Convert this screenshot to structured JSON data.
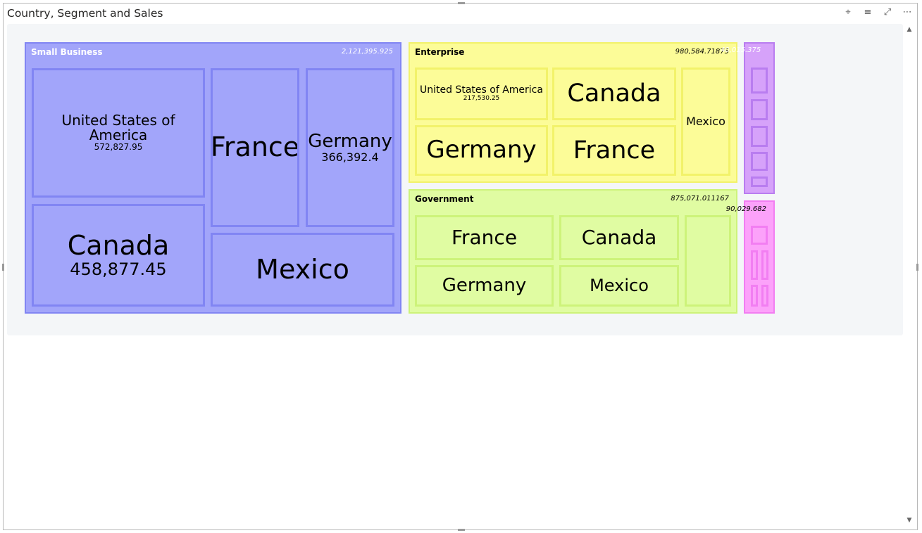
{
  "visual": {
    "title": "Country, Segment and Sales"
  },
  "header_icons": [
    {
      "name": "pin-icon",
      "glyph": "⌖"
    },
    {
      "name": "filter-icon",
      "glyph": "≡"
    },
    {
      "name": "focus-mode-icon",
      "glyph": "⤢"
    },
    {
      "name": "more-options-icon",
      "glyph": "⋯"
    }
  ],
  "chart_data": {
    "type": "treemap",
    "title": "Country, Segment and Sales",
    "groups": [
      {
        "name": "Small Business",
        "value_label": "2,121,395.925",
        "value": 2121395.925,
        "color": "#a2a5fa",
        "border": "#8185f3",
        "header_text_color": "#ffffff",
        "children": [
          {
            "name": "United States of America",
            "value_label": "572,827.95",
            "value": 572827.95
          },
          {
            "name": "France",
            "value_label": "",
            "value": 371000
          },
          {
            "name": "Germany",
            "value_label": "366,392.4",
            "value": 366392.4
          },
          {
            "name": "Canada",
            "value_label": "458,877.45",
            "value": 458877.45
          },
          {
            "name": "Mexico",
            "value_label": "",
            "value": 352000
          }
        ]
      },
      {
        "name": "Enterprise",
        "value_label": "980,584.71875",
        "value": 980584.71875,
        "color": "#fcfc98",
        "border": "#f2f26a",
        "header_text_color": "#000000",
        "children": [
          {
            "name": "United States of America",
            "value_label": "217,530.25",
            "value": 217530.25
          },
          {
            "name": "Canada",
            "value_label": "",
            "value": 205000
          },
          {
            "name": "Germany",
            "value_label": "",
            "value": 210000
          },
          {
            "name": "France",
            "value_label": "",
            "value": 200000
          },
          {
            "name": "Mexico",
            "value_label": "",
            "value": 148000
          }
        ]
      },
      {
        "name": "Government",
        "value_label": "875,071.011167",
        "value": 875071.011167,
        "color": "#e0fca2",
        "border": "#cdf37a",
        "header_text_color": "#000000",
        "children": [
          {
            "name": "France",
            "value_label": "",
            "value": 205000
          },
          {
            "name": "Canada",
            "value_label": "",
            "value": 190000
          },
          {
            "name": "Germany",
            "value_label": "",
            "value": 195000
          },
          {
            "name": "Mexico",
            "value_label": "",
            "value": 170000
          },
          {
            "name": "",
            "value_label": "",
            "value": 115000
          }
        ]
      },
      {
        "name": "",
        "value_label": "",
        "value": 100000,
        "color": "#d6a2fa",
        "border": "#b97df0",
        "header_text_color": "#000000",
        "children": [
          {
            "name": "",
            "value_label": "",
            "value": 22000
          },
          {
            "name": "",
            "value_label": "",
            "value": 21000
          },
          {
            "name": "",
            "value_label": "",
            "value": 21000
          },
          {
            "name": "",
            "value_label": "",
            "value": 20000
          },
          {
            "name": "",
            "value_label": "",
            "value": 16000
          }
        ]
      },
      {
        "name": "",
        "value_label": "90,029.682",
        "value": 90029.682,
        "color": "#fca2fa",
        "border": "#f27ef2",
        "header_text_color": "#000000",
        "children": [
          {
            "name": "",
            "value_label": "",
            "value": 25000
          },
          {
            "name": "",
            "value_label": "",
            "value": 17000
          },
          {
            "name": "",
            "value_label": "",
            "value": 17000
          },
          {
            "name": "",
            "value_label": "",
            "value": 16000
          },
          {
            "name": "",
            "value_label": "",
            "value": 15000
          }
        ]
      }
    ],
    "overlapped_labels": [
      "40,015.375"
    ]
  }
}
